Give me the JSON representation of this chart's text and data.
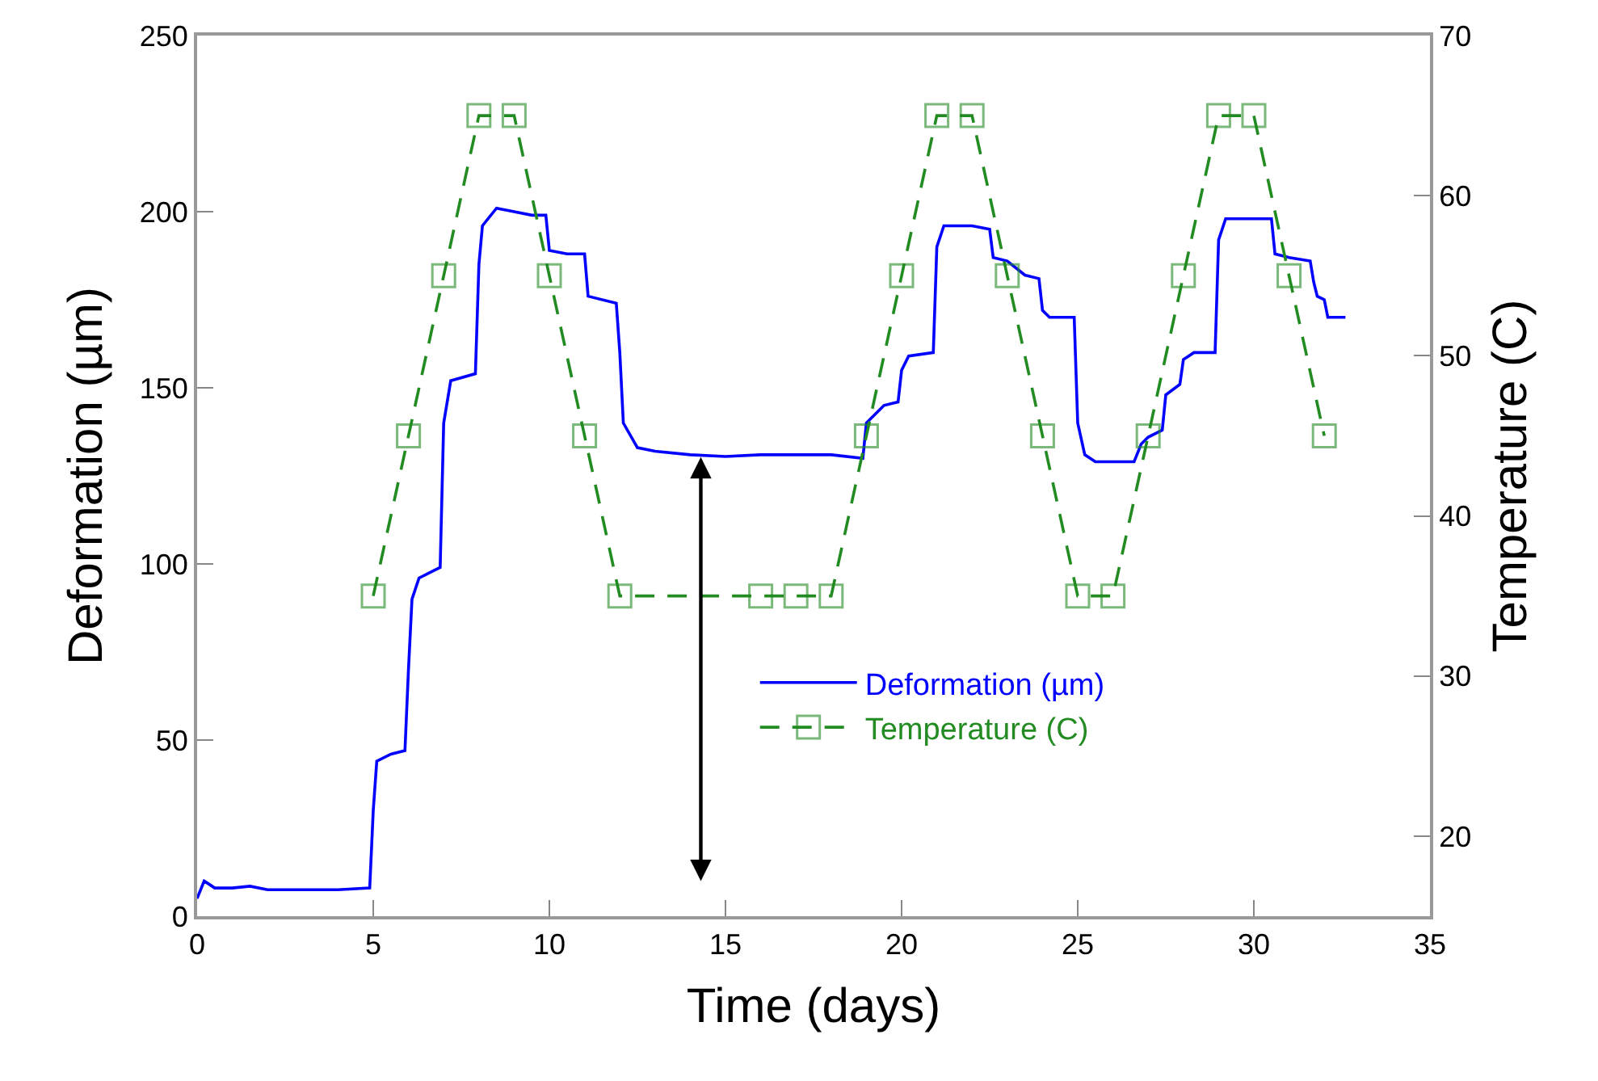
{
  "chart_data": {
    "type": "line",
    "xlabel": "Time (days)",
    "ylabel": "Deformation (µm)",
    "y2label": "Temperature (C)",
    "xlim": [
      0,
      35
    ],
    "xticks": [
      0,
      5,
      10,
      15,
      20,
      25,
      30,
      35
    ],
    "ylim": [
      0,
      250
    ],
    "yticks": [
      0,
      50,
      100,
      150,
      200,
      250
    ],
    "y2lim": [
      15,
      70
    ],
    "y2ticks": [
      20,
      30,
      40,
      50,
      60,
      70
    ],
    "grid": false,
    "legend": "bottom right",
    "series": [
      {
        "name": "Deformation (µm)",
        "color": "#0000ff",
        "marker": "none",
        "line_style": "solid",
        "x": [
          0,
          0.2,
          0.5,
          1,
          1.5,
          2,
          3,
          4,
          4.9,
          5.0,
          5.1,
          5.5,
          5.9,
          6.0,
          6.1,
          6.3,
          6.7,
          6.9,
          7.0,
          7.2,
          7.9,
          8.0,
          8.1,
          8.5,
          9.0,
          9.5,
          9.9,
          10.0,
          10.5,
          11.0,
          11.1,
          11.9,
          12.0,
          12.1,
          12.5,
          13,
          14,
          15,
          16,
          17,
          18,
          18.9,
          19.0,
          19.5,
          19.9,
          20.0,
          20.2,
          20.9,
          21.0,
          21.2,
          22.0,
          22.5,
          22.6,
          23.0,
          23.5,
          23.9,
          24.0,
          24.2,
          24.9,
          25.0,
          25.2,
          25.5,
          26,
          26.6,
          26.8,
          27,
          27.4,
          27.5,
          27.9,
          28,
          28.3,
          28.9,
          29.0,
          29.2,
          30,
          30.5,
          30.6,
          31,
          31.6,
          31.7,
          31.8,
          32.0,
          32.1,
          32.6
        ],
        "values": [
          5,
          10,
          8,
          8,
          8.5,
          7.5,
          7.5,
          7.5,
          8,
          30,
          44,
          46,
          47,
          70,
          90,
          96,
          98,
          99,
          140,
          152,
          154,
          185,
          196,
          201,
          200,
          199,
          199,
          189,
          188,
          188,
          176,
          174,
          160,
          140,
          133,
          132,
          131,
          130.5,
          131,
          131,
          131,
          130,
          140,
          145,
          146,
          155,
          159,
          160,
          190,
          196,
          196,
          195,
          187,
          186,
          182,
          181,
          172,
          170,
          170,
          140,
          131,
          129,
          129,
          129,
          134,
          136,
          138,
          148,
          151,
          158,
          160,
          160,
          192,
          198,
          198,
          198,
          188,
          187,
          186,
          180,
          176,
          175,
          170,
          170
        ]
      },
      {
        "name": "Temperature (C)",
        "color": "#228b22",
        "axis": "y2",
        "marker": "square",
        "line_style": "dashed",
        "x": [
          5,
          6,
          7,
          8,
          9,
          10,
          11,
          12,
          16,
          17,
          18,
          19,
          20,
          21,
          22,
          23,
          24,
          25,
          26,
          27,
          28,
          29,
          30,
          31,
          32
        ],
        "values": [
          35,
          45,
          55,
          65,
          65,
          55,
          45,
          35,
          35,
          35,
          35,
          45,
          55,
          65,
          65,
          55,
          45,
          35,
          35,
          45,
          55,
          65,
          65,
          55,
          45
        ]
      }
    ]
  }
}
